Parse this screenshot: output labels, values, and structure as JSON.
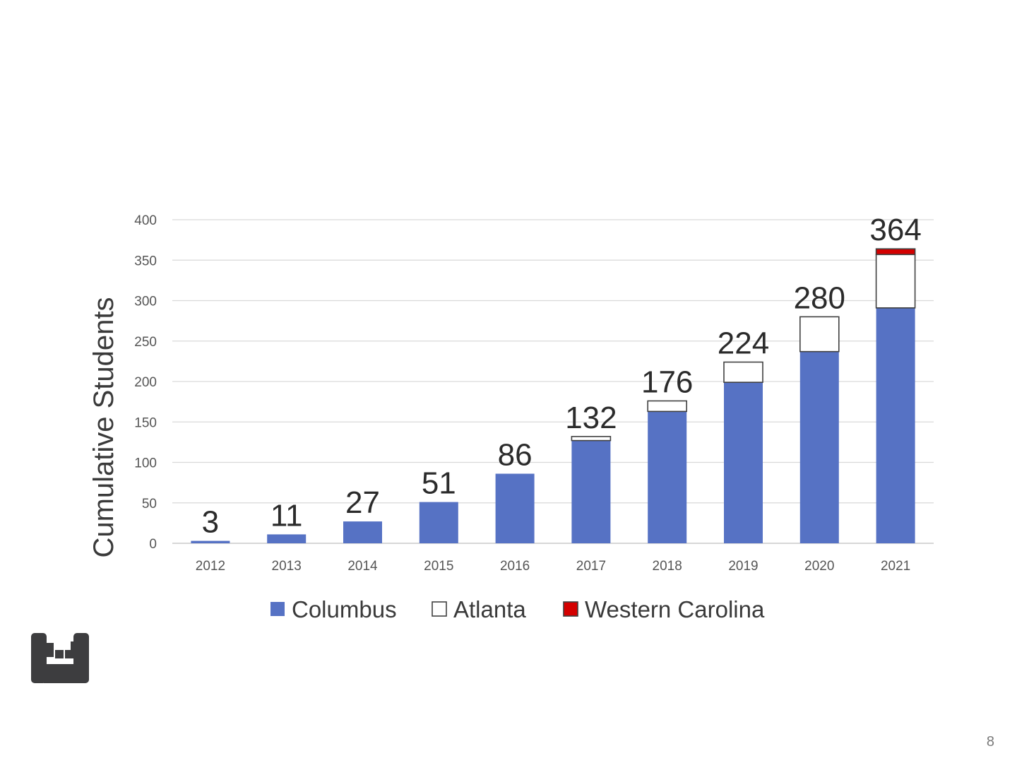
{
  "page_number": "8",
  "logo_icon": "company-logo-icon",
  "colors": {
    "columbus": "#5672c4",
    "atlanta": "#ffffff",
    "western_carolina": "#d40000",
    "grid": "#d9d9d9",
    "segment_outline": "#404040"
  },
  "chart_data": {
    "type": "bar",
    "stacked": true,
    "title": "",
    "xlabel": "",
    "ylabel": "Cumulative Students",
    "ylim": [
      0,
      400
    ],
    "yticks": [
      0,
      50,
      100,
      150,
      200,
      250,
      300,
      350,
      400
    ],
    "grid": true,
    "legend_position": "bottom",
    "categories": [
      "2012",
      "2013",
      "2014",
      "2015",
      "2016",
      "2017",
      "2018",
      "2019",
      "2020",
      "2021"
    ],
    "series": [
      {
        "name": "Columbus",
        "values": [
          3,
          11,
          27,
          51,
          86,
          127,
          163,
          199,
          237,
          291
        ]
      },
      {
        "name": "Atlanta",
        "values": [
          0,
          0,
          0,
          0,
          0,
          5,
          13,
          25,
          43,
          66
        ]
      },
      {
        "name": "Western Carolina",
        "values": [
          0,
          0,
          0,
          0,
          0,
          0,
          0,
          0,
          0,
          7
        ]
      }
    ],
    "totals": [
      "3",
      "11",
      "27",
      "51",
      "86",
      "132",
      "176",
      "224",
      "280",
      "364"
    ]
  }
}
